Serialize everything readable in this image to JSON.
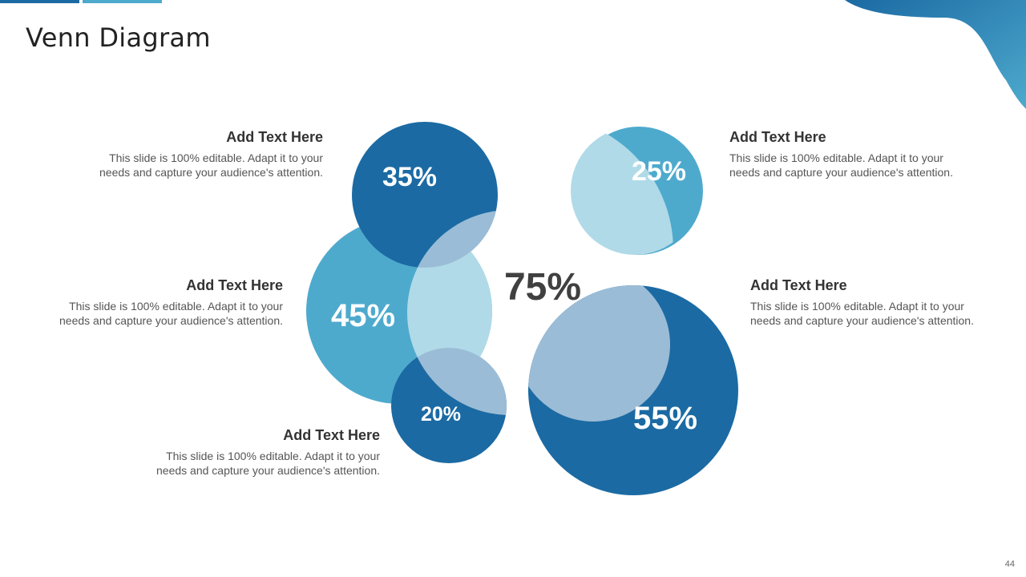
{
  "slide": {
    "title": "Venn Diagram",
    "page_number": "44"
  },
  "colors": {
    "dark_blue": "#1b6aa3",
    "mid_blue": "#4eaacd",
    "light_blue": "#b0dae8",
    "overlap": "#9bbcd6",
    "text_dark": "#333333",
    "text_body": "#555555"
  },
  "diagram": {
    "center_value": "75%",
    "circles": [
      {
        "value": "35%"
      },
      {
        "value": "45%"
      },
      {
        "value": "20%"
      },
      {
        "value": "25%"
      },
      {
        "value": "55%"
      }
    ]
  },
  "text_blocks": [
    {
      "heading": "Add Text Here",
      "body_line1": "This slide is 100% editable. Adapt it to your",
      "body_line2": "needs and capture your audience's attention."
    },
    {
      "heading": "Add Text Here",
      "body_line1": "This slide is 100% editable. Adapt it to your",
      "body_line2": "needs and capture your audience's attention."
    },
    {
      "heading": "Add Text Here",
      "body_line1": "This slide is 100% editable. Adapt it to your",
      "body_line2": "needs and capture your audience's attention."
    },
    {
      "heading": "Add Text Here",
      "body_line1": "This slide is 100% editable. Adapt it to your",
      "body_line2": "needs and capture your audience's attention."
    },
    {
      "heading": "Add Text Here",
      "body_line1": "This slide is 100% editable. Adapt it to your",
      "body_line2": "needs and capture your audience's attention."
    }
  ]
}
